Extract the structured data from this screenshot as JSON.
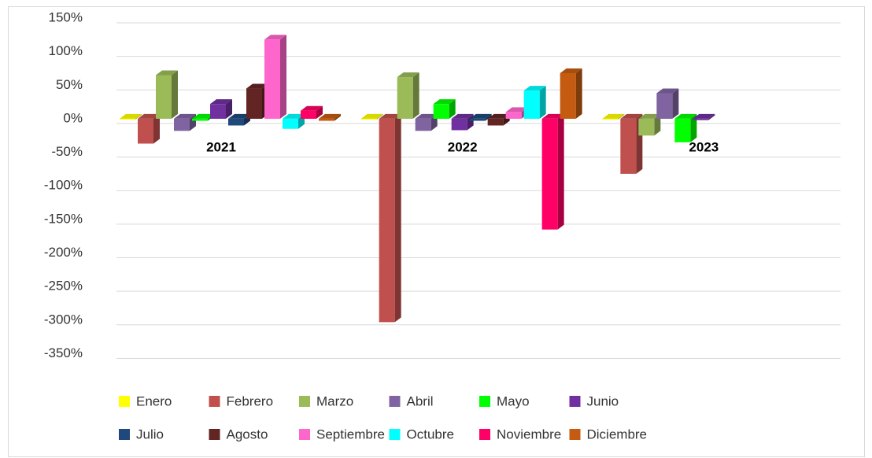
{
  "chart_data": {
    "type": "bar3d",
    "categories": [
      "2021",
      "2022",
      "2023"
    ],
    "series": [
      {
        "name": "Enero",
        "color": "#ffff00",
        "values": [
          0,
          0,
          0
        ]
      },
      {
        "name": "Febrero",
        "color": "#c0504d",
        "values": [
          -37,
          -303,
          -82
        ]
      },
      {
        "name": "Marzo",
        "color": "#9bbb59",
        "values": [
          65,
          62,
          -25
        ]
      },
      {
        "name": "Abril",
        "color": "#8064a2",
        "values": [
          -18,
          -18,
          38
        ]
      },
      {
        "name": "Mayo",
        "color": "#00ff00",
        "values": [
          -3,
          22,
          -35
        ]
      },
      {
        "name": "Junio",
        "color": "#7030a0",
        "values": [
          22,
          -17,
          -2
        ]
      },
      {
        "name": "Julio",
        "color": "#1f497d",
        "values": [
          -10,
          -3,
          null
        ]
      },
      {
        "name": "Agosto",
        "color": "#632523",
        "values": [
          45,
          -10,
          null
        ]
      },
      {
        "name": "Septiembre",
        "color": "#ff66cc",
        "values": [
          118,
          10,
          null
        ]
      },
      {
        "name": "Octubre",
        "color": "#00ffff",
        "values": [
          -15,
          42,
          null
        ]
      },
      {
        "name": "Noviembre",
        "color": "#ff0066",
        "values": [
          12,
          -165,
          null
        ]
      },
      {
        "name": "Diciembre",
        "color": "#c55a11",
        "values": [
          -3,
          68,
          null
        ]
      }
    ],
    "ylim": [
      -400,
      150
    ],
    "yticks": [
      {
        "value": 150,
        "label": "150%"
      },
      {
        "value": 100,
        "label": "100%"
      },
      {
        "value": 50,
        "label": "50%"
      },
      {
        "value": 0,
        "label": "0%"
      },
      {
        "value": -50,
        "label": "-50%"
      },
      {
        "value": -100,
        "label": "-100%"
      },
      {
        "value": -150,
        "label": "-150%"
      },
      {
        "value": -200,
        "label": "-200%"
      },
      {
        "value": -250,
        "label": "-250%"
      },
      {
        "value": -300,
        "label": "-300%"
      },
      {
        "value": -350,
        "label": "-350%"
      }
    ],
    "grid": true,
    "legend": "bottom"
  }
}
